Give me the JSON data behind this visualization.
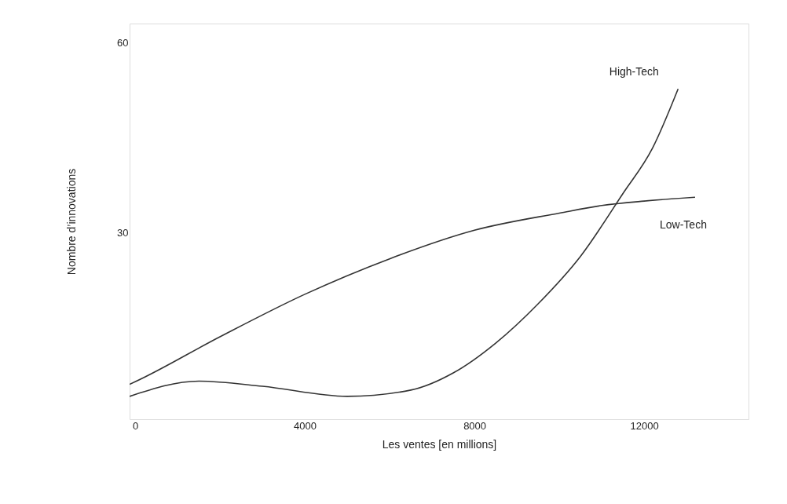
{
  "chart_data": {
    "type": "line",
    "xlabel": "Les ventes [en millions]",
    "ylabel": "Nombre d’innovations",
    "xlim": [
      -130,
      14460
    ],
    "ylim": [
      0.6,
      63
    ],
    "xticks": [
      0,
      4000,
      8000,
      12000
    ],
    "yticks": [
      30,
      60
    ],
    "grid": false,
    "marker": "none",
    "line_style": "solid",
    "series": [
      {
        "name": "Low-Tech",
        "color": "#333333",
        "x": [
          -130,
          0,
          2000,
          4000,
          6000,
          8000,
          10000,
          11000,
          12000,
          13200
        ],
        "values": [
          6.1,
          6.5,
          13.6,
          20.3,
          25.9,
          30.4,
          33.1,
          34.3,
          35.0,
          35.6
        ]
      },
      {
        "name": "High-Tech",
        "color": "#333333",
        "x": [
          -130,
          1500,
          3000,
          5000,
          6500,
          7500,
          8500,
          9500,
          10500,
          11500,
          12200,
          12800
        ],
        "values": [
          4.2,
          6.6,
          5.8,
          4.2,
          5.2,
          7.9,
          12.6,
          18.8,
          26.3,
          36.2,
          43.4,
          52.7
        ]
      }
    ]
  }
}
